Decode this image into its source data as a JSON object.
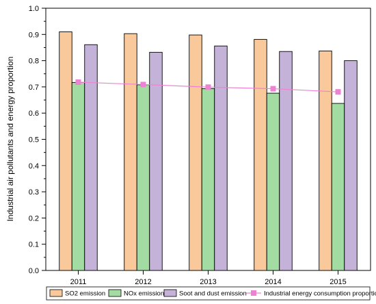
{
  "chart_data": {
    "type": "bar",
    "title": "",
    "xlabel": "",
    "ylabel": "Industrial air pollutants and energy proportion",
    "ylim": [
      0.0,
      1.0
    ],
    "yticks": [
      "0.0",
      "0.1",
      "0.2",
      "0.3",
      "0.4",
      "0.5",
      "0.6",
      "0.7",
      "0.8",
      "0.9",
      "1.0"
    ],
    "categories": [
      "2011",
      "2012",
      "2013",
      "2014",
      "2015"
    ],
    "grid": false,
    "legend_position": "bottom",
    "series": [
      {
        "name": "SO2 emission",
        "kind": "bar",
        "color": "#f9c89b",
        "values": [
          0.91,
          0.903,
          0.898,
          0.881,
          0.837
        ]
      },
      {
        "name": "NOx emission",
        "kind": "bar",
        "color": "#a3dca3",
        "values": [
          0.717,
          0.708,
          0.693,
          0.676,
          0.637
        ]
      },
      {
        "name": "Soot and dust emission",
        "kind": "bar",
        "color": "#c4b2d9",
        "values": [
          0.861,
          0.832,
          0.856,
          0.835,
          0.8
        ]
      },
      {
        "name": "Industrial  energy consumption proportion",
        "kind": "line",
        "color": "#ee82d2",
        "values": [
          0.718,
          0.709,
          0.699,
          0.693,
          0.681
        ]
      }
    ]
  }
}
